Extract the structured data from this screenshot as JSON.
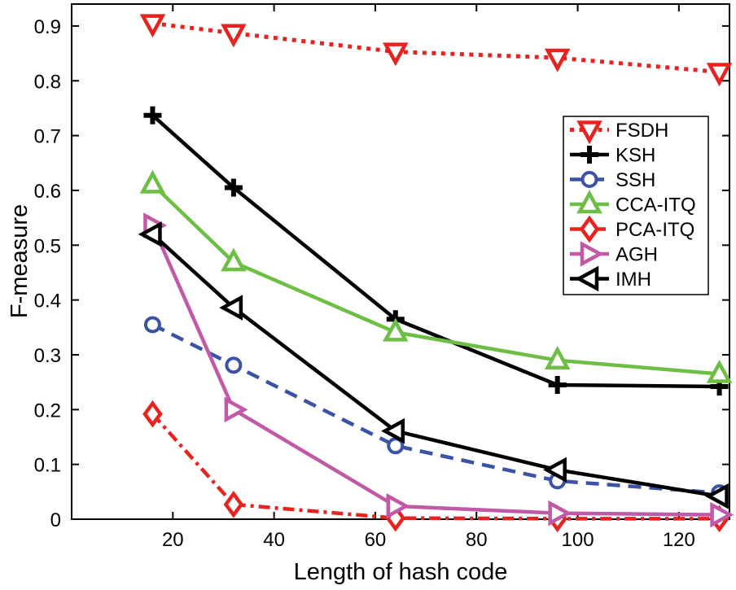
{
  "figure": {
    "background": "#ffffff",
    "axis_color": "#000000"
  },
  "chart_data": {
    "type": "line",
    "title": "",
    "xlabel": "Length of hash code",
    "ylabel": "F-measure",
    "x": [
      16,
      32,
      64,
      96,
      128
    ],
    "xlim": [
      0,
      130
    ],
    "ylim": [
      0,
      0.94
    ],
    "x_ticks": [
      20,
      40,
      60,
      80,
      100,
      120
    ],
    "y_ticks": [
      0,
      0.1,
      0.2,
      0.3,
      0.4,
      0.5,
      0.6,
      0.7,
      0.8,
      0.9
    ],
    "grid": false,
    "legend_position": "inside-upper-right",
    "series": [
      {
        "name": "FSDH",
        "color": "#e8231f",
        "line_style": "dotted",
        "marker": "triangle-down",
        "values": [
          0.905,
          0.887,
          0.853,
          0.842,
          0.816
        ]
      },
      {
        "name": "KSH",
        "color": "#000000",
        "line_style": "solid",
        "marker": "plus",
        "values": [
          0.737,
          0.605,
          0.365,
          0.245,
          0.242
        ]
      },
      {
        "name": "SSH",
        "color": "#3a53a4",
        "line_style": "dashed",
        "marker": "circle",
        "values": [
          0.355,
          0.281,
          0.134,
          0.07,
          0.048
        ]
      },
      {
        "name": "CCA-ITQ",
        "color": "#6cbe45",
        "line_style": "solid",
        "marker": "triangle-up",
        "values": [
          0.611,
          0.469,
          0.341,
          0.29,
          0.265
        ]
      },
      {
        "name": "PCA-ITQ",
        "color": "#e8231f",
        "line_style": "dash-dot",
        "marker": "diamond",
        "values": [
          0.192,
          0.027,
          0.002,
          0.001,
          0.001
        ]
      },
      {
        "name": "AGH",
        "color": "#c059a6",
        "line_style": "solid",
        "marker": "triangle-right",
        "values": [
          0.536,
          0.2,
          0.024,
          0.011,
          0.008
        ]
      },
      {
        "name": "IMH",
        "color": "#000000",
        "line_style": "solid",
        "marker": "triangle-left",
        "values": [
          0.52,
          0.386,
          0.161,
          0.09,
          0.042
        ]
      }
    ]
  }
}
